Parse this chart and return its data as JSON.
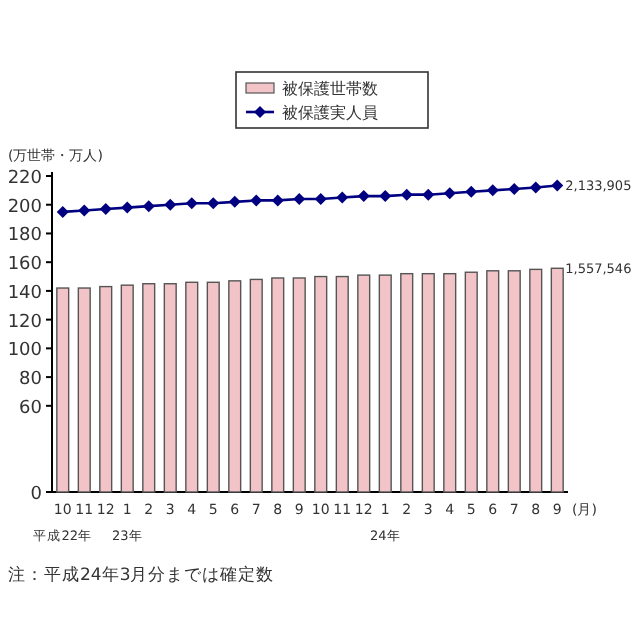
{
  "chart_data": {
    "type": "bar",
    "categories": [
      "10\n平成22年",
      "11",
      "12",
      "1\n23年",
      "2",
      "3",
      "4",
      "5",
      "6",
      "7",
      "8",
      "9",
      "10",
      "11",
      "12",
      "1\n24年",
      "2",
      "3",
      "4",
      "5",
      "6",
      "7",
      "8",
      "9"
    ],
    "series": [
      {
        "name": "被保護世帯数",
        "color": "#f2c4c8",
        "values": [
          142,
          142,
          143,
          144,
          145,
          145,
          146,
          146,
          147,
          148,
          149,
          149,
          150,
          150,
          151,
          151,
          152,
          152,
          152,
          153,
          154,
          154,
          155,
          155.75
        ]
      },
      {
        "name": "被保護実人員",
        "type": "line",
        "color": "#000080",
        "marker": "diamond",
        "values": [
          195,
          196,
          197,
          198,
          199,
          200,
          201,
          201,
          202,
          203,
          203,
          204,
          204,
          205,
          206,
          206,
          207,
          207,
          208,
          209,
          210,
          211,
          212,
          213.39
        ]
      }
    ],
    "xlabel": "(月)",
    "ylabel": "(万世帯・万人)",
    "ylim": [
      0,
      220
    ],
    "yticks": [
      0,
      60,
      80,
      100,
      120,
      140,
      160,
      180,
      200,
      220
    ],
    "legend": "top",
    "grid": false,
    "annotations": [
      "1,557,546",
      "2,133,905",
      "注：平成24年3月分までは確定数"
    ]
  }
}
